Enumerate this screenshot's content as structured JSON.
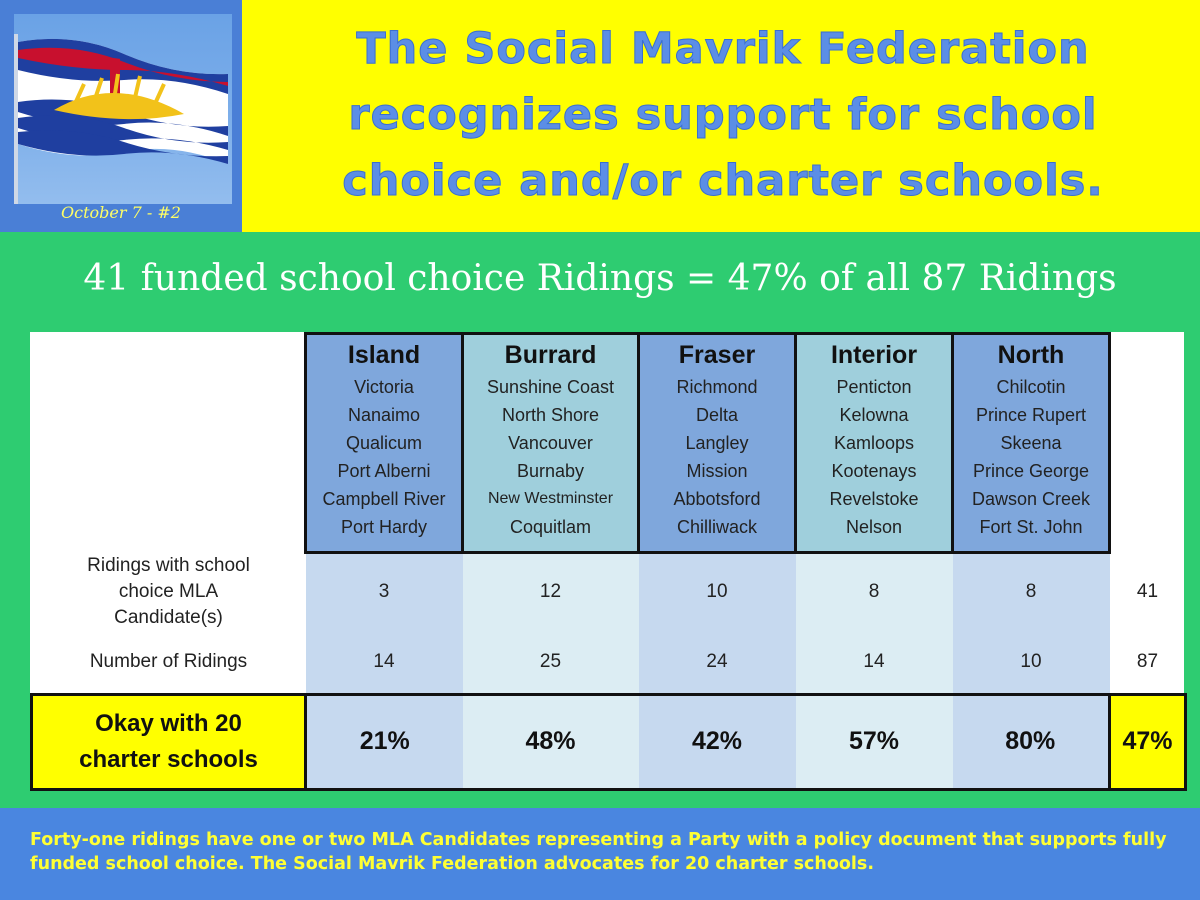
{
  "header": {
    "date_label": "October 7 - #2",
    "headline": [
      "The Social Mavrik Federation",
      "recognizes support for school",
      "choice and/or charter schools."
    ],
    "flag_icon": "bc-flag-icon",
    "colors": {
      "header_bg": "#ffff00",
      "headline": "#5b8ee6",
      "page_bg": "#2ecc71",
      "panel_blue": "#4a7fd6"
    }
  },
  "subheader": "41 funded school choice Ridings = 47% of all 87 Ridings",
  "table": {
    "regions": [
      {
        "name": "Island",
        "cities": [
          "Victoria",
          "Nanaimo",
          "Qualicum",
          "Port Alberni",
          "Campbell River",
          "Port Hardy"
        ]
      },
      {
        "name": "Burrard",
        "cities": [
          "Sunshine Coast",
          "North Shore",
          "Vancouver",
          "Burnaby",
          "New Westminster",
          "Coquitlam"
        ]
      },
      {
        "name": "Fraser",
        "cities": [
          "Richmond",
          "Delta",
          "Langley",
          "Mission",
          "Abbotsford",
          "Chilliwack"
        ]
      },
      {
        "name": "Interior",
        "cities": [
          "Penticton",
          "Kelowna",
          "Kamloops",
          "Kootenays",
          "Revelstoke",
          "Nelson"
        ]
      },
      {
        "name": "North",
        "cities": [
          "Chilcotin",
          "Prince Rupert",
          "Skeena",
          "Prince George",
          "Dawson Creek",
          "Fort St. John"
        ]
      }
    ],
    "rows": {
      "choice": {
        "label": "Ridings with school choice MLA Candidate(s)",
        "values": [
          "3",
          "12",
          "10",
          "8",
          "8"
        ],
        "total": "41"
      },
      "count": {
        "label": "Number of Ridings",
        "values": [
          "14",
          "25",
          "24",
          "14",
          "10"
        ],
        "total": "87"
      },
      "okay": {
        "label": "Okay with 20 charter schools",
        "values": [
          "21%",
          "48%",
          "42%",
          "57%",
          "80%"
        ],
        "total": "47%"
      }
    }
  },
  "footer": {
    "text": "Forty-one ridings have one or two MLA Candidates representing a Party with a policy document that supports fully funded school choice. The Social Mavrik Federation advocates for 20 charter schools."
  }
}
